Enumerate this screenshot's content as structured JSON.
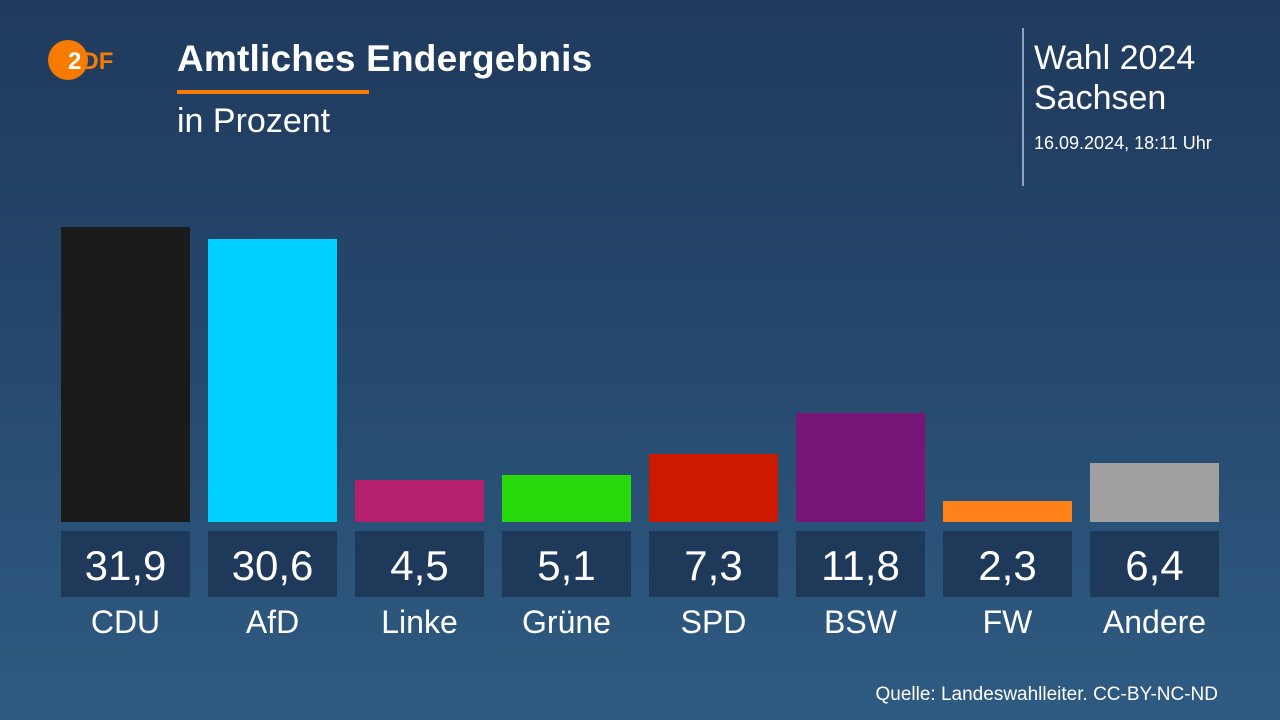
{
  "header": {
    "logo_text": "ZDF",
    "title": "Amtliches Endergebnis",
    "subtitle": "in Prozent",
    "election_line1": "Wahl 2024",
    "election_line2": "Sachsen",
    "date": "16.09.2024, 18:11 Uhr"
  },
  "footer": {
    "source": "Quelle: Landeswahlleiter. CC-BY-NC-ND"
  },
  "colors": {
    "accent": "#f57c00"
  },
  "chart_data": {
    "type": "bar",
    "title": "Amtliches Endergebnis",
    "subtitle": "in Prozent",
    "categories": [
      "CDU",
      "AfD",
      "Linke",
      "Grüne",
      "SPD",
      "BSW",
      "FW",
      "Andere"
    ],
    "values": [
      31.9,
      30.6,
      4.5,
      5.1,
      7.3,
      11.8,
      2.3,
      6.4
    ],
    "value_labels": [
      "31,9",
      "30,6",
      "4,5",
      "5,1",
      "7,3",
      "11,8",
      "2,3",
      "6,4"
    ],
    "colors": [
      "#1b1b1b",
      "#00d0ff",
      "#b4206e",
      "#27d90b",
      "#cc1a00",
      "#771677",
      "#ff8119",
      "#a0a0a0"
    ],
    "grid": false
  }
}
